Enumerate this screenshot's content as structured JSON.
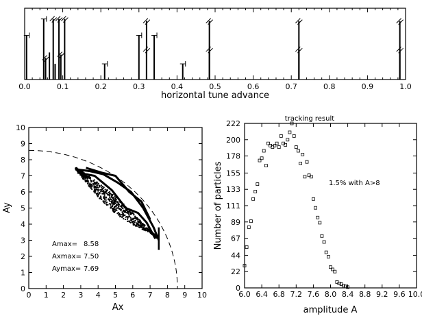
{
  "chart_data": [
    {
      "type": "bar",
      "xlabel": "horizontal tune advance",
      "xlim": [
        0.0,
        1.0
      ],
      "ylim": [
        0,
        1
      ],
      "xticks": [
        "0.0",
        "0.1",
        "0.2",
        "0.3",
        "0.4",
        "0.5",
        "0.6",
        "0.7",
        "0.8",
        "0.9",
        "1.0"
      ],
      "lines": [
        {
          "x": 0.005,
          "y": 0.62,
          "marker": "bracket"
        },
        {
          "x": 0.05,
          "y": 0.85,
          "marker": "bracket"
        },
        {
          "x": 0.055,
          "y": 0.3,
          "marker": "slash"
        },
        {
          "x": 0.065,
          "y": 0.38,
          "marker": "none"
        },
        {
          "x": 0.075,
          "y": 0.85,
          "marker": "slash"
        },
        {
          "x": 0.08,
          "y": 0.22,
          "marker": "none"
        },
        {
          "x": 0.09,
          "y": 0.85,
          "marker": "slash"
        },
        {
          "x": 0.095,
          "y": 0.35,
          "marker": "slash"
        },
        {
          "x": 0.105,
          "y": 0.85,
          "marker": "slash"
        },
        {
          "x": 0.21,
          "y": 0.22,
          "marker": "bracket"
        },
        {
          "x": 0.3,
          "y": 0.62,
          "marker": "bracket"
        },
        {
          "x": 0.32,
          "y": 0.82,
          "marker": "slash"
        },
        {
          "x": 0.32,
          "y": 0.42,
          "marker": "slash"
        },
        {
          "x": 0.34,
          "y": 0.62,
          "marker": "bracket"
        },
        {
          "x": 0.415,
          "y": 0.22,
          "marker": "bracket"
        },
        {
          "x": 0.485,
          "y": 0.82,
          "marker": "slash"
        },
        {
          "x": 0.485,
          "y": 0.42,
          "marker": "slash"
        },
        {
          "x": 0.72,
          "y": 0.82,
          "marker": "slash"
        },
        {
          "x": 0.72,
          "y": 0.42,
          "marker": "slash"
        },
        {
          "x": 0.985,
          "y": 0.82,
          "marker": "slash"
        },
        {
          "x": 0.985,
          "y": 0.42,
          "marker": "slash"
        }
      ]
    },
    {
      "type": "scatter",
      "xlabel": "Ax",
      "ylabel": "Ay",
      "xlim": [
        0,
        10
      ],
      "ylim": [
        0,
        10
      ],
      "xticks": [
        "0",
        "1",
        "2",
        "3",
        "4",
        "5",
        "6",
        "7",
        "8",
        "9",
        "10"
      ],
      "yticks": [
        "0",
        "1",
        "2",
        "3",
        "4",
        "5",
        "6",
        "7",
        "8",
        "9",
        "10"
      ],
      "boundary_radius": 8.58,
      "annotations": [
        {
          "label": "Amax=",
          "value": "8.58"
        },
        {
          "label": "Axmax=",
          "value": "7.50"
        },
        {
          "label": "Aymax=",
          "value": "7.69"
        }
      ]
    },
    {
      "type": "scatter",
      "title": "tracking result",
      "xlabel": "amplitude A",
      "ylabel": "Number of particles",
      "xlim": [
        6.0,
        10.0
      ],
      "ylim": [
        0,
        222
      ],
      "xticks": [
        "6.0",
        "6.4",
        "6.8",
        "7.2",
        "7.6",
        "8.0",
        "8.4",
        "8.8",
        "9.2",
        "9.6",
        "10.0"
      ],
      "yticks": [
        "0",
        "22",
        "44",
        "67",
        "89",
        "111",
        "133",
        "155",
        "178",
        "200",
        "222"
      ],
      "annotation": "1.5% with A>8",
      "x": [
        6.0,
        6.05,
        6.1,
        6.15,
        6.2,
        6.25,
        6.3,
        6.35,
        6.4,
        6.45,
        6.5,
        6.55,
        6.6,
        6.65,
        6.7,
        6.75,
        6.8,
        6.85,
        6.9,
        6.95,
        7.0,
        7.05,
        7.1,
        7.15,
        7.2,
        7.25,
        7.3,
        7.35,
        7.4,
        7.45,
        7.5,
        7.55,
        7.6,
        7.65,
        7.7,
        7.75,
        7.8,
        7.85,
        7.9,
        7.95,
        8.0,
        8.05,
        8.1,
        8.15,
        8.2,
        8.25,
        8.3,
        8.35,
        8.4
      ],
      "y": [
        30,
        55,
        82,
        90,
        120,
        130,
        140,
        172,
        175,
        185,
        165,
        195,
        192,
        190,
        192,
        195,
        190,
        205,
        195,
        193,
        200,
        210,
        222,
        205,
        190,
        185,
        168,
        180,
        150,
        170,
        152,
        150,
        120,
        108,
        95,
        88,
        70,
        62,
        48,
        42,
        28,
        25,
        22,
        8,
        6,
        5,
        3,
        2,
        1
      ]
    }
  ]
}
